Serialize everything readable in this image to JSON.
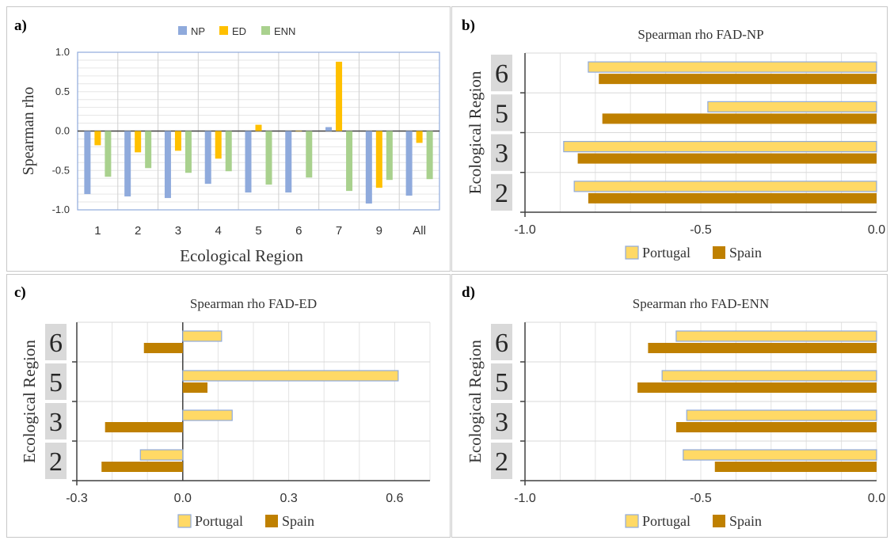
{
  "panels": {
    "a": {
      "letter": "a)"
    },
    "b": {
      "letter": "b)"
    },
    "c": {
      "letter": "c)"
    },
    "d": {
      "letter": "d)"
    }
  },
  "chart_data": [
    {
      "id": "a",
      "type": "bar",
      "title": "",
      "xlabel": "Ecological Region",
      "ylabel": "Spearman rho",
      "categories": [
        "1",
        "2",
        "3",
        "4",
        "5",
        "6",
        "7",
        "9",
        "All"
      ],
      "ylim": [
        -1.0,
        1.0
      ],
      "yticks": [
        "1.0",
        "0.5",
        "0.0",
        "-0.5",
        "-1.0"
      ],
      "ytick_values": [
        1.0,
        0.5,
        0.0,
        -0.5,
        -1.0
      ],
      "legend_position": "top",
      "grid": true,
      "series": [
        {
          "name": "NP",
          "color": "#8faadc",
          "values": [
            -0.8,
            -0.83,
            -0.85,
            -0.67,
            -0.78,
            -0.78,
            0.05,
            -0.92,
            -0.82
          ]
        },
        {
          "name": "ED",
          "color": "#ffc000",
          "values": [
            -0.18,
            -0.27,
            -0.25,
            -0.35,
            0.08,
            0.0,
            0.88,
            -0.72,
            -0.15
          ]
        },
        {
          "name": "ENN",
          "color": "#a9d18e",
          "values": [
            -0.58,
            -0.47,
            -0.53,
            -0.51,
            -0.68,
            -0.59,
            -0.76,
            -0.62,
            -0.61
          ]
        }
      ]
    },
    {
      "id": "b",
      "type": "bar",
      "orientation": "horizontal",
      "title": "Spearman rho FAD-NP",
      "ylabel": "Ecological Region",
      "categories": [
        "6",
        "5",
        "3",
        "2"
      ],
      "xlim": [
        -1.0,
        0.0
      ],
      "xticks": [
        "-1.0",
        "-0.5",
        "0.0"
      ],
      "xtick_values": [
        -1.0,
        -0.5,
        0.0
      ],
      "legend_position": "bottom",
      "series": [
        {
          "name": "Portugal",
          "color": "#ffd966",
          "values": [
            -0.82,
            -0.48,
            -0.89,
            -0.86
          ]
        },
        {
          "name": "Spain",
          "color": "#bf8000",
          "values": [
            -0.79,
            -0.78,
            -0.85,
            -0.82
          ]
        }
      ]
    },
    {
      "id": "c",
      "type": "bar",
      "orientation": "horizontal",
      "title": "Spearman rho FAD-ED",
      "ylabel": "Ecological Region",
      "categories": [
        "6",
        "5",
        "3",
        "2"
      ],
      "xlim": [
        -0.3,
        0.7
      ],
      "xticks": [
        "-0.3",
        "0.0",
        "0.3",
        "0.6"
      ],
      "xtick_values": [
        -0.3,
        0.0,
        0.3,
        0.6
      ],
      "legend_position": "bottom",
      "series": [
        {
          "name": "Portugal",
          "color": "#ffd966",
          "values": [
            0.11,
            0.61,
            0.14,
            -0.12
          ]
        },
        {
          "name": "Spain",
          "color": "#bf8000",
          "values": [
            -0.11,
            0.07,
            -0.22,
            -0.23
          ]
        }
      ]
    },
    {
      "id": "d",
      "type": "bar",
      "orientation": "horizontal",
      "title": "Spearman rho FAD-ENN",
      "ylabel": "Ecological Region",
      "categories": [
        "6",
        "5",
        "3",
        "2"
      ],
      "xlim": [
        -1.0,
        0.0
      ],
      "xticks": [
        "-1.0",
        "-0.5",
        "0.0"
      ],
      "xtick_values": [
        -1.0,
        -0.5,
        0.0
      ],
      "legend_position": "bottom",
      "series": [
        {
          "name": "Portugal",
          "color": "#ffd966",
          "values": [
            -0.57,
            -0.61,
            -0.54,
            -0.55
          ]
        },
        {
          "name": "Spain",
          "color": "#bf8000",
          "values": [
            -0.65,
            -0.68,
            -0.57,
            -0.46
          ]
        }
      ]
    }
  ]
}
